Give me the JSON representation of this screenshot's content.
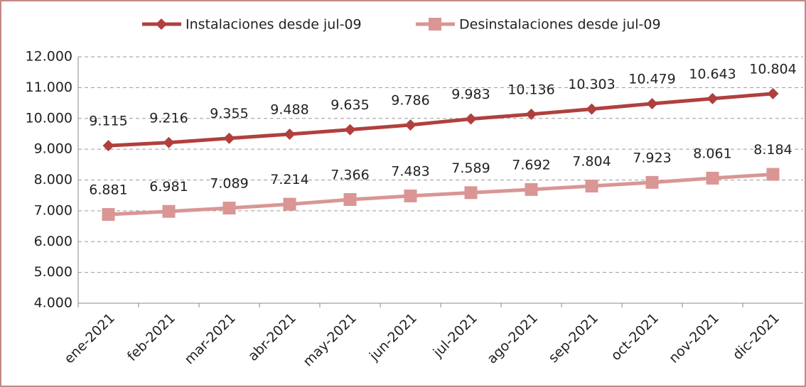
{
  "chart_data": {
    "type": "line",
    "categories": [
      "ene-2021",
      "feb-2021",
      "mar-2021",
      "abr-2021",
      "may-2021",
      "jun-2021",
      "jul-2021",
      "ago-2021",
      "sep-2021",
      "oct-2021",
      "nov-2021",
      "dic-2021"
    ],
    "series": [
      {
        "name": "Instalaciones desde jul-09",
        "color": "#b0403e",
        "marker": "diamond",
        "values": [
          9115,
          9216,
          9355,
          9488,
          9635,
          9786,
          9983,
          10136,
          10303,
          10479,
          10643,
          10804
        ],
        "value_labels": [
          "9.115",
          "9.216",
          "9.355",
          "9.488",
          "9.635",
          "9.786",
          "9.983",
          "10.136",
          "10.303",
          "10.479",
          "10.643",
          "10.804"
        ]
      },
      {
        "name": "Desinstalaciones desde jul-09",
        "color": "#d99694",
        "marker": "square",
        "values": [
          6881,
          6981,
          7089,
          7214,
          7366,
          7483,
          7589,
          7692,
          7804,
          7923,
          8061,
          8184
        ],
        "value_labels": [
          "6.881",
          "6.981",
          "7.089",
          "7.214",
          "7.366",
          "7.483",
          "7.589",
          "7.692",
          "7.804",
          "7.923",
          "8.061",
          "8.184"
        ]
      }
    ],
    "ylim": [
      4000,
      12000
    ],
    "yticks": [
      {
        "value": 4000,
        "label": "4.000"
      },
      {
        "value": 5000,
        "label": "5.000"
      },
      {
        "value": 6000,
        "label": "6.000"
      },
      {
        "value": 7000,
        "label": "7.000"
      },
      {
        "value": 8000,
        "label": "8.000"
      },
      {
        "value": 9000,
        "label": "9.000"
      },
      {
        "value": 10000,
        "label": "10.000"
      },
      {
        "value": 11000,
        "label": "11.000"
      },
      {
        "value": 12000,
        "label": "12.000"
      }
    ],
    "grid": true,
    "legend": "top"
  }
}
